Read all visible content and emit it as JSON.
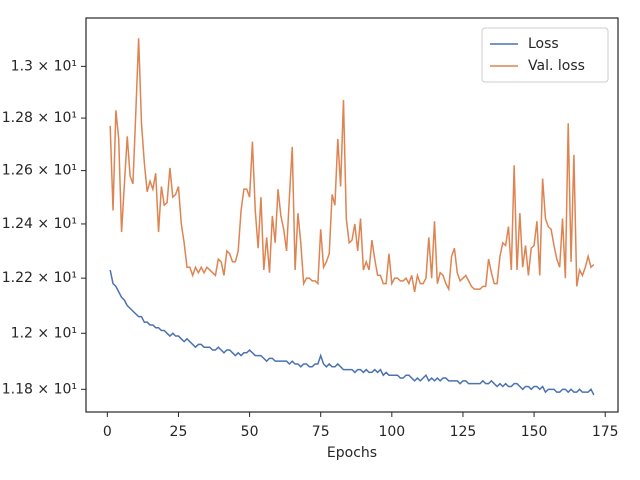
{
  "chart_data": {
    "type": "line",
    "xlabel": "Epochs",
    "x": [
      1,
      2,
      3,
      4,
      5,
      6,
      7,
      8,
      9,
      10,
      11,
      12,
      13,
      14,
      15,
      16,
      17,
      18,
      19,
      20,
      21,
      22,
      23,
      24,
      25,
      26,
      27,
      28,
      29,
      30,
      31,
      32,
      33,
      34,
      35,
      36,
      37,
      38,
      39,
      40,
      41,
      42,
      43,
      44,
      45,
      46,
      47,
      48,
      49,
      50,
      51,
      52,
      53,
      54,
      55,
      56,
      57,
      58,
      59,
      60,
      61,
      62,
      63,
      64,
      65,
      66,
      67,
      68,
      69,
      70,
      71,
      72,
      73,
      74,
      75,
      76,
      77,
      78,
      79,
      80,
      81,
      82,
      83,
      84,
      85,
      86,
      87,
      88,
      89,
      90,
      91,
      92,
      93,
      94,
      95,
      96,
      97,
      98,
      99,
      100,
      101,
      102,
      103,
      104,
      105,
      106,
      107,
      108,
      109,
      110,
      111,
      112,
      113,
      114,
      115,
      116,
      117,
      118,
      119,
      120,
      121,
      122,
      123,
      124,
      125,
      126,
      127,
      128,
      129,
      130,
      131,
      132,
      133,
      134,
      135,
      136,
      137,
      138,
      139,
      140,
      141,
      142,
      143,
      144,
      145,
      146,
      147,
      148,
      149,
      150,
      151,
      152,
      153,
      154,
      155,
      156,
      157,
      158,
      159,
      160,
      161,
      162,
      163,
      164,
      165,
      166,
      167,
      168,
      169,
      170,
      171
    ],
    "series": [
      {
        "name": "Loss",
        "color": "#4c72b0",
        "values": [
          12.23,
          12.18,
          12.17,
          12.15,
          12.13,
          12.12,
          12.1,
          12.09,
          12.08,
          12.07,
          12.06,
          12.06,
          12.04,
          12.04,
          12.03,
          12.03,
          12.02,
          12.02,
          12.01,
          12.01,
          12.0,
          11.99,
          12.0,
          11.99,
          11.99,
          11.98,
          11.97,
          11.98,
          11.97,
          11.96,
          11.95,
          11.96,
          11.96,
          11.95,
          11.95,
          11.95,
          11.94,
          11.94,
          11.95,
          11.94,
          11.93,
          11.94,
          11.94,
          11.93,
          11.92,
          11.93,
          11.92,
          11.93,
          11.93,
          11.94,
          11.93,
          11.92,
          11.92,
          11.92,
          11.91,
          11.9,
          11.91,
          11.91,
          11.9,
          11.9,
          11.9,
          11.9,
          11.9,
          11.89,
          11.9,
          11.89,
          11.89,
          11.88,
          11.89,
          11.89,
          11.88,
          11.88,
          11.89,
          11.89,
          11.92,
          11.89,
          11.88,
          11.89,
          11.88,
          11.88,
          11.89,
          11.88,
          11.87,
          11.87,
          11.87,
          11.87,
          11.86,
          11.87,
          11.87,
          11.86,
          11.87,
          11.86,
          11.86,
          11.87,
          11.86,
          11.87,
          11.85,
          11.86,
          11.85,
          11.85,
          11.85,
          11.85,
          11.84,
          11.84,
          11.85,
          11.85,
          11.84,
          11.83,
          11.84,
          11.83,
          11.84,
          11.85,
          11.83,
          11.84,
          11.83,
          11.84,
          11.83,
          11.84,
          11.84,
          11.83,
          11.83,
          11.83,
          11.83,
          11.82,
          11.83,
          11.83,
          11.82,
          11.82,
          11.82,
          11.82,
          11.82,
          11.83,
          11.82,
          11.82,
          11.83,
          11.82,
          11.81,
          11.82,
          11.81,
          11.82,
          11.81,
          11.81,
          11.82,
          11.82,
          11.81,
          11.8,
          11.81,
          11.81,
          11.8,
          11.81,
          11.81,
          11.8,
          11.81,
          11.79,
          11.8,
          11.8,
          11.8,
          11.79,
          11.79,
          11.8,
          11.8,
          11.79,
          11.8,
          11.79,
          11.79,
          11.8,
          11.79,
          11.79,
          11.79,
          11.8,
          11.78
        ]
      },
      {
        "name": "Val. loss",
        "color": "#dd8452",
        "values": [
          12.77,
          12.45,
          12.83,
          12.72,
          12.37,
          12.55,
          12.73,
          12.58,
          12.55,
          12.82,
          13.11,
          12.78,
          12.63,
          12.52,
          12.56,
          12.53,
          12.59,
          12.37,
          12.54,
          12.47,
          12.48,
          12.61,
          12.5,
          12.51,
          12.54,
          12.4,
          12.33,
          12.24,
          12.24,
          12.21,
          12.24,
          12.22,
          12.24,
          12.22,
          12.24,
          12.23,
          12.22,
          12.21,
          12.27,
          12.26,
          12.21,
          12.3,
          12.29,
          12.26,
          12.26,
          12.3,
          12.45,
          12.53,
          12.53,
          12.5,
          12.71,
          12.45,
          12.31,
          12.5,
          12.23,
          12.35,
          12.22,
          12.43,
          12.33,
          12.53,
          12.43,
          12.38,
          12.3,
          12.5,
          12.69,
          12.23,
          12.44,
          12.33,
          12.18,
          12.2,
          12.2,
          12.19,
          12.19,
          12.18,
          12.38,
          12.24,
          12.26,
          12.29,
          12.51,
          12.47,
          12.72,
          12.54,
          12.87,
          12.42,
          12.33,
          12.34,
          12.4,
          12.3,
          12.42,
          12.23,
          12.26,
          12.23,
          12.34,
          12.27,
          12.21,
          12.21,
          12.18,
          12.18,
          12.29,
          12.18,
          12.2,
          12.2,
          12.19,
          12.19,
          12.2,
          12.18,
          12.21,
          12.15,
          12.21,
          12.18,
          12.18,
          12.2,
          12.35,
          12.2,
          12.41,
          12.18,
          12.22,
          12.21,
          12.18,
          12.16,
          12.28,
          12.31,
          12.22,
          12.19,
          12.2,
          12.21,
          12.19,
          12.17,
          12.16,
          12.16,
          12.16,
          12.17,
          12.17,
          12.27,
          12.22,
          12.18,
          12.18,
          12.28,
          12.33,
          12.32,
          12.39,
          12.23,
          12.62,
          12.23,
          12.44,
          12.24,
          12.32,
          12.21,
          12.31,
          12.32,
          12.41,
          12.21,
          12.57,
          12.42,
          12.39,
          12.38,
          12.32,
          12.27,
          12.24,
          12.42,
          12.2,
          12.78,
          12.26,
          12.66,
          12.17,
          12.23,
          12.21,
          12.24,
          12.28,
          12.24,
          12.25
        ]
      }
    ],
    "xlim": [
      -7.5,
      179.5
    ],
    "xticks": [
      0,
      25,
      50,
      75,
      100,
      125,
      150,
      175
    ],
    "ylim": [
      11.72,
      13.19
    ],
    "ylog": true,
    "yticks": [
      {
        "value": 11.8,
        "label": "1.18 × 10¹"
      },
      {
        "value": 12.0,
        "label": "1.2 × 10¹"
      },
      {
        "value": 12.2,
        "label": "1.22 × 10¹"
      },
      {
        "value": 12.4,
        "label": "1.24 × 10¹"
      },
      {
        "value": 12.6,
        "label": "1.26 × 10¹"
      },
      {
        "value": 12.8,
        "label": "1.28 × 10¹"
      },
      {
        "value": 13.0,
        "label": "1.3 × 10¹"
      }
    ],
    "legend": "upper right"
  }
}
